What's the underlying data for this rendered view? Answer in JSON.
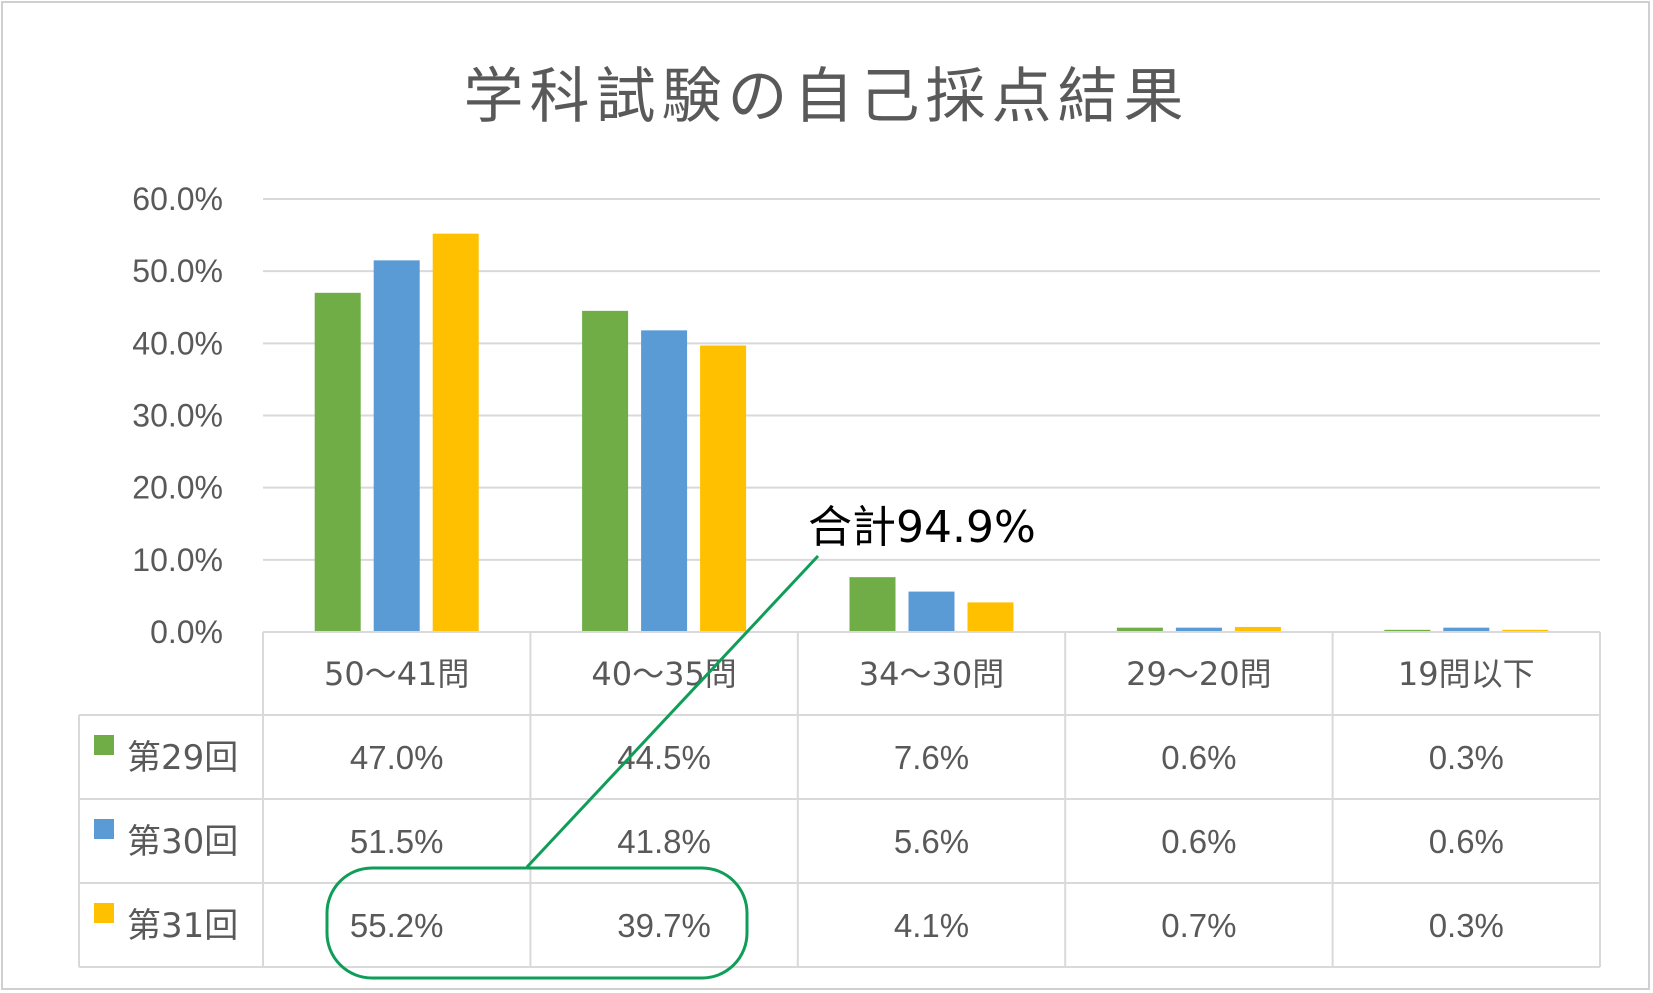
{
  "chart_data": {
    "type": "bar",
    "title": "学科試験の自己採点結果",
    "categories": [
      "50〜41問",
      "40〜35問",
      "34〜30問",
      "29〜20問",
      "19問以下"
    ],
    "series": [
      {
        "name": "第29回",
        "values": [
          47.0,
          44.5,
          7.6,
          0.6,
          0.3
        ],
        "labels": [
          "47.0%",
          "44.5%",
          "7.6%",
          "0.6%",
          "0.3%"
        ]
      },
      {
        "name": "第30回",
        "values": [
          51.5,
          41.8,
          5.6,
          0.6,
          0.6
        ],
        "labels": [
          "51.5%",
          "41.8%",
          "5.6%",
          "0.6%",
          "0.6%"
        ]
      },
      {
        "name": "第31回",
        "values": [
          55.2,
          39.7,
          4.1,
          0.7,
          0.3
        ],
        "labels": [
          "55.2%",
          "39.7%",
          "4.1%",
          "0.7%",
          "0.3%"
        ]
      }
    ],
    "ylim": [
      0,
      60
    ],
    "yticks": [
      "0.0%",
      "10.0%",
      "20.0%",
      "30.0%",
      "40.0%",
      "50.0%",
      "60.0%"
    ],
    "grid": true,
    "legend": "data-table",
    "annotation": "合計94.9%"
  },
  "colors": {
    "series": [
      "#70ad47",
      "#5b9bd5",
      "#ffc000"
    ],
    "grid": "#d9d9d9",
    "annotation": "#0f9d58"
  }
}
